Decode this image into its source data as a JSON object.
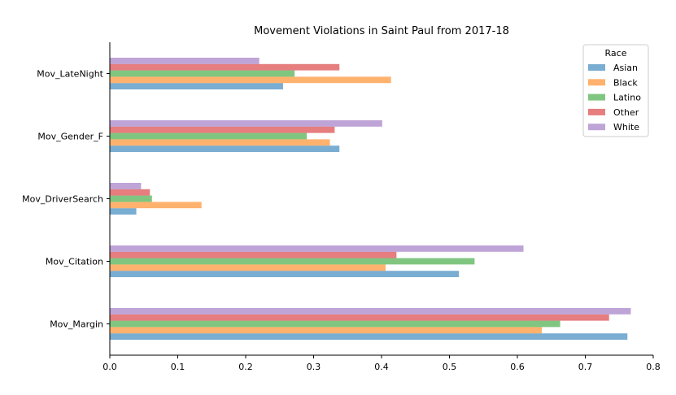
{
  "chart_data": {
    "type": "bar",
    "orientation": "horizontal",
    "title": "Movement Violations in Saint Paul from 2017-18",
    "xlabel": "",
    "ylabel": "",
    "xlim": [
      0,
      0.8
    ],
    "x_ticks": [
      "0.0",
      "0.1",
      "0.2",
      "0.3",
      "0.4",
      "0.5",
      "0.6",
      "0.7",
      "0.8"
    ],
    "categories": [
      "Mov_LateNight",
      "Mov_Gender_F",
      "Mov_DriverSearch",
      "Mov_Citation",
      "Mov_Margin"
    ],
    "legend": {
      "title": "Race",
      "position": "top-right"
    },
    "grid": false,
    "series": [
      {
        "name": "Asian",
        "color": "#1f77b4",
        "values": [
          0.255,
          0.338,
          0.039,
          0.514,
          0.762
        ]
      },
      {
        "name": "Black",
        "color": "#ff7f0e",
        "values": [
          0.414,
          0.324,
          0.135,
          0.406,
          0.636
        ]
      },
      {
        "name": "Latino",
        "color": "#2ca02c",
        "values": [
          0.272,
          0.29,
          0.062,
          0.537,
          0.663
        ]
      },
      {
        "name": "Other",
        "color": "#d62728",
        "values": [
          0.338,
          0.331,
          0.059,
          0.422,
          0.735
        ]
      },
      {
        "name": "White",
        "color": "#9467bd",
        "values": [
          0.22,
          0.401,
          0.046,
          0.609,
          0.767
        ]
      }
    ]
  }
}
